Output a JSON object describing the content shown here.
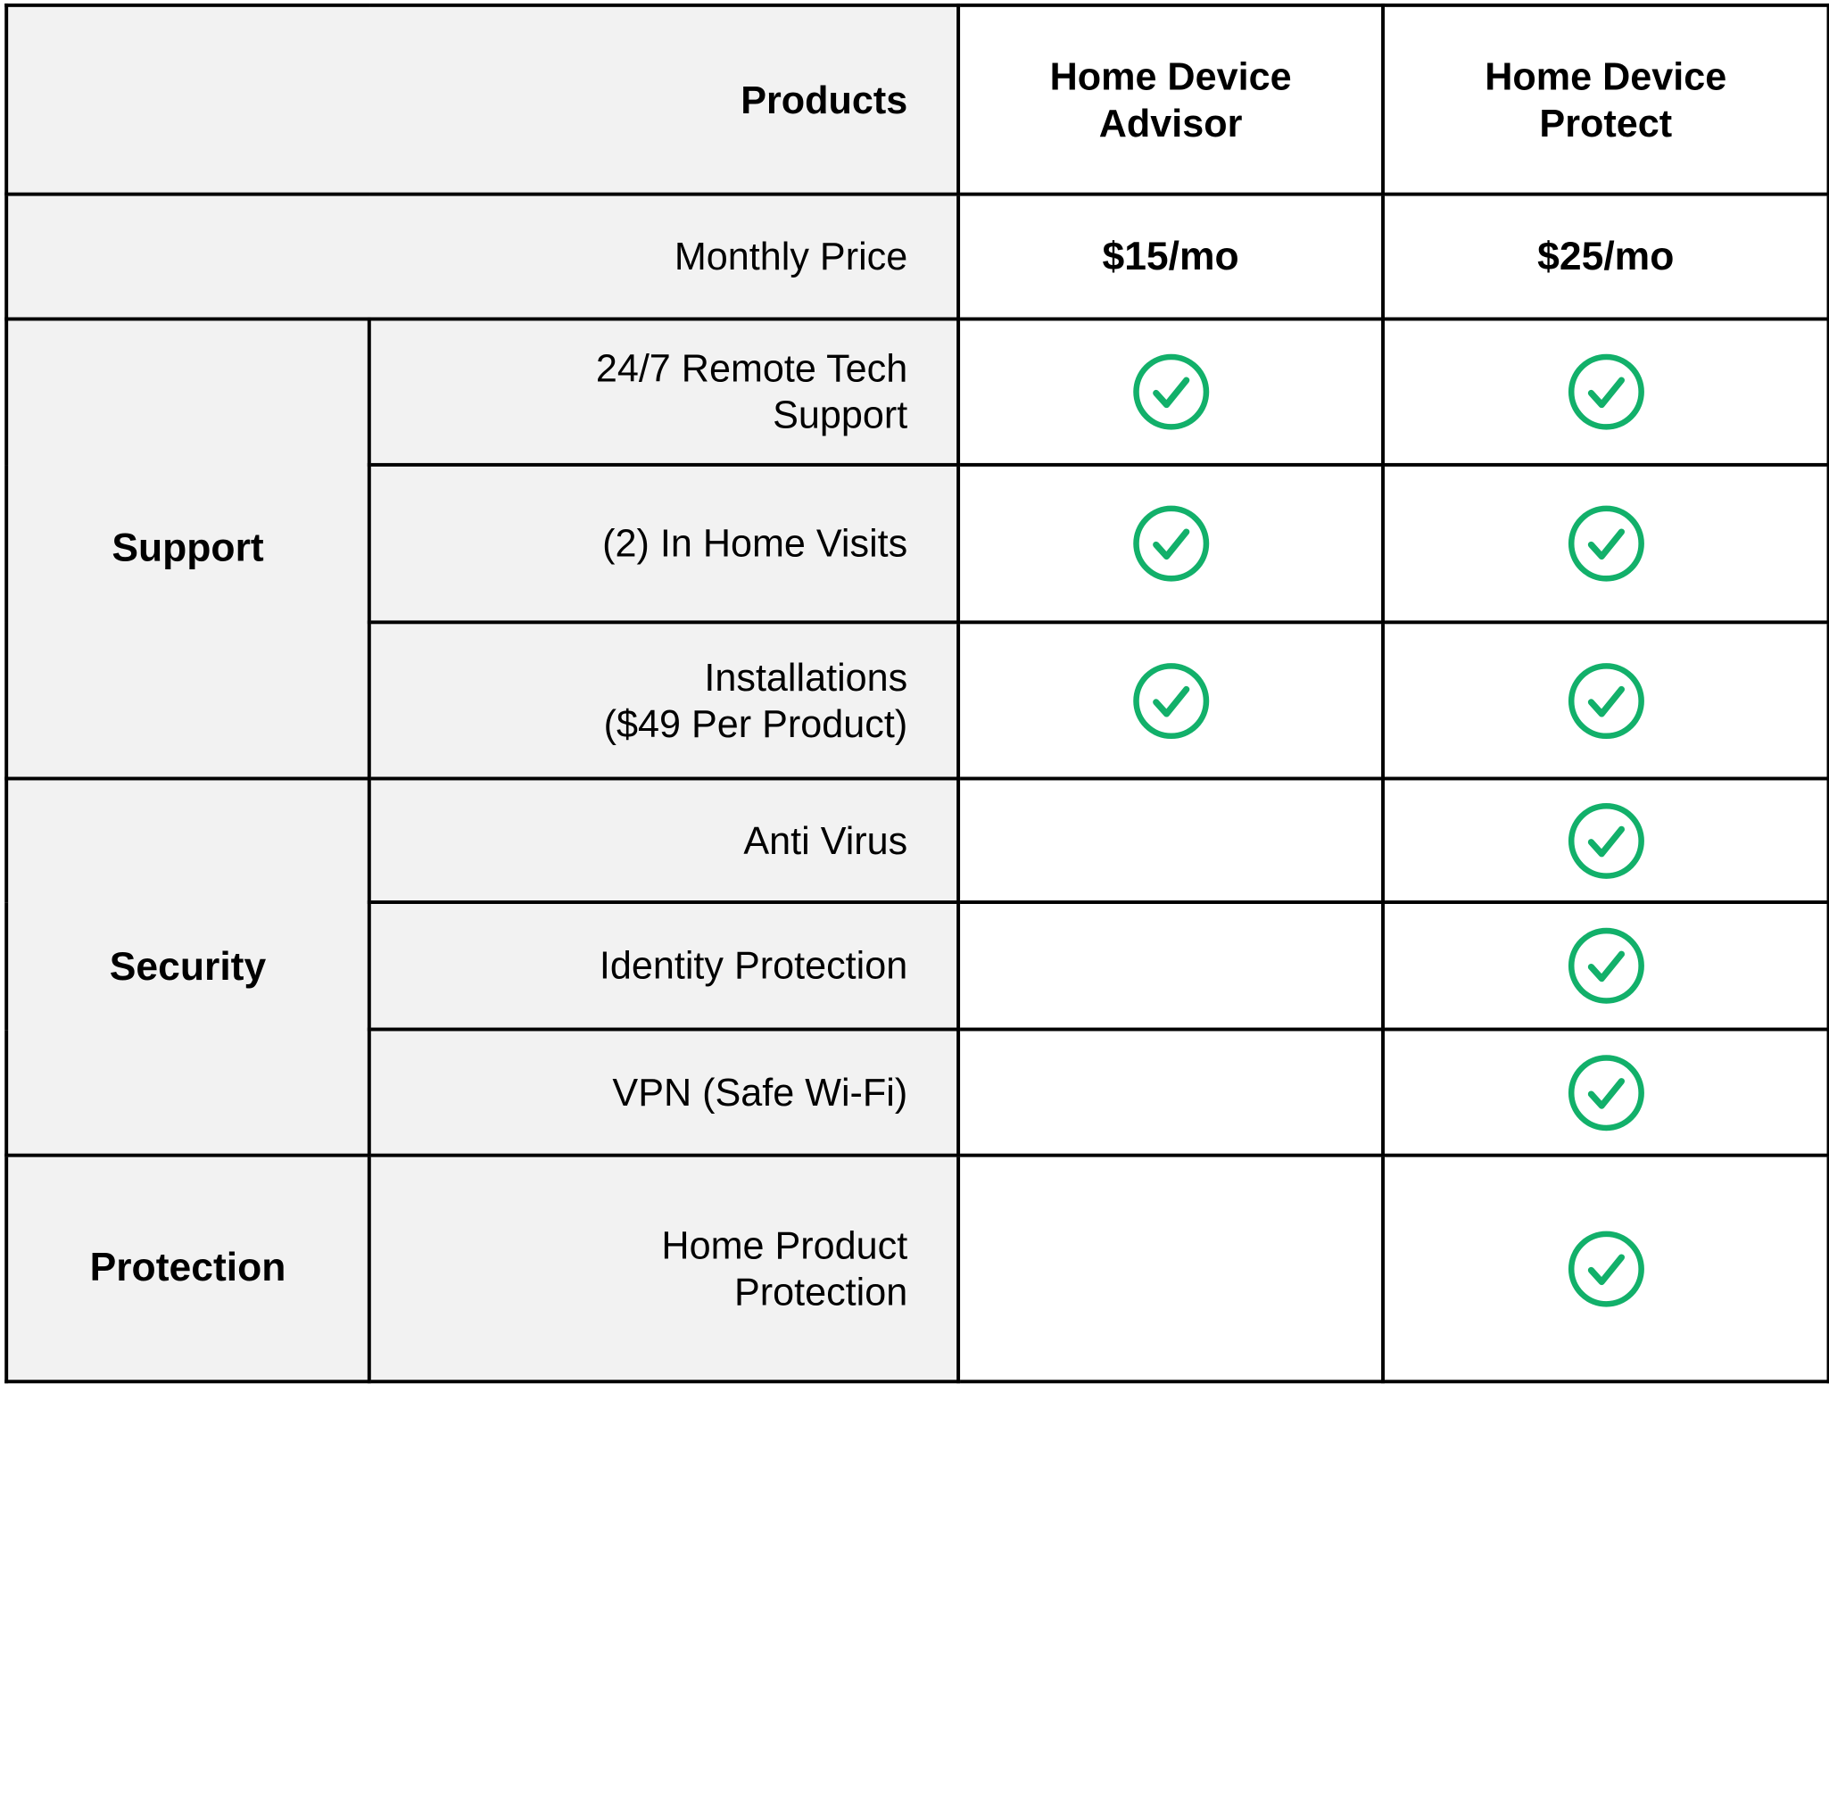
{
  "header": {
    "products_label": "Products",
    "plans": [
      {
        "line1": "Home Device",
        "line2": "Advisor"
      },
      {
        "line1": "Home Device",
        "line2": "Protect"
      }
    ]
  },
  "price_row": {
    "label": "Monthly Price",
    "values": [
      "$15/mo",
      "$25/mo"
    ]
  },
  "categories": {
    "support": "Support",
    "security": "Security",
    "protection": "Protection"
  },
  "features": {
    "remote": {
      "line1": "24/7 Remote Tech",
      "line2": "Support",
      "advisor": true,
      "protect": true
    },
    "visits": {
      "line1": "(2) In Home Visits",
      "advisor": true,
      "protect": true
    },
    "install": {
      "line1": "Installations",
      "line2": "($49 Per Product)",
      "advisor": true,
      "protect": true
    },
    "antivirus": {
      "line1": "Anti Virus",
      "advisor": false,
      "protect": true
    },
    "identity": {
      "line1": "Identity Protection",
      "advisor": false,
      "protect": true
    },
    "vpn": {
      "line1": "VPN (Safe Wi-Fi)",
      "advisor": false,
      "protect": true
    },
    "home_product": {
      "line1": "Home Product",
      "line2": "Protection",
      "advisor": false,
      "protect": true
    }
  },
  "colors": {
    "check": "#12b06a",
    "label_bg": "#f2f2f2",
    "border": "#000000"
  },
  "icons": {
    "included": "check-circle-icon"
  }
}
